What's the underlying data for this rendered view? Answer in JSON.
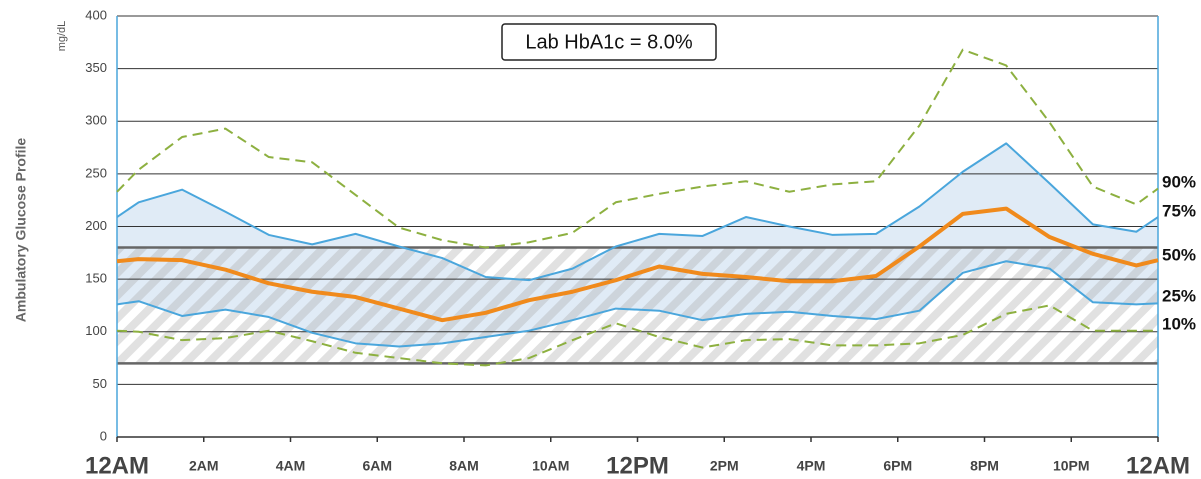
{
  "chart_data": {
    "type": "line",
    "y_axis_title": "Ambulatory Glucose Profile",
    "y_unit": "mg/dL",
    "annotation": "Lab HbA1c = 8.0%",
    "x": [
      0,
      0.5,
      1.5,
      2.5,
      3.5,
      4.5,
      5.5,
      6.5,
      7.5,
      8.5,
      9.5,
      10.5,
      11.5,
      12.5,
      13.5,
      14.5,
      15.5,
      16.5,
      17.5,
      18.5,
      19.5,
      20.5,
      21.5,
      22.5,
      23.5,
      24
    ],
    "xlim": [
      0,
      24
    ],
    "xticks": [
      {
        "value": 0,
        "label": "12AM"
      },
      {
        "value": 2,
        "label": "2AM"
      },
      {
        "value": 4,
        "label": "4AM"
      },
      {
        "value": 6,
        "label": "6AM"
      },
      {
        "value": 8,
        "label": "8AM"
      },
      {
        "value": 10,
        "label": "10AM"
      },
      {
        "value": 12,
        "label": "12PM"
      },
      {
        "value": 14,
        "label": "2PM"
      },
      {
        "value": 16,
        "label": "4PM"
      },
      {
        "value": 18,
        "label": "6PM"
      },
      {
        "value": 20,
        "label": "8PM"
      },
      {
        "value": 22,
        "label": "10PM"
      },
      {
        "value": 24,
        "label": "12AM"
      }
    ],
    "ylim": [
      0,
      400
    ],
    "yticks": [
      0,
      50,
      100,
      150,
      200,
      250,
      300,
      350,
      400
    ],
    "grid": true,
    "target_range": [
      70,
      180
    ],
    "iqr_fill": "#dbe7f4",
    "series": [
      {
        "name": "90%",
        "color": "#8db040",
        "dashed": true,
        "width": 2,
        "values": [
          233,
          254,
          285,
          293,
          266,
          261,
          230,
          199,
          187,
          180,
          185,
          194,
          223,
          231,
          238,
          243,
          233,
          240,
          243,
          296,
          368,
          353,
          299,
          238,
          221,
          236
        ]
      },
      {
        "name": "75%",
        "color": "#4aa6dc",
        "dashed": false,
        "width": 2,
        "values": [
          209,
          223,
          235,
          214,
          192,
          183,
          193,
          181,
          170,
          152,
          149,
          160,
          181,
          193,
          191,
          209,
          200,
          192,
          193,
          219,
          252,
          279,
          241,
          202,
          195,
          209
        ]
      },
      {
        "name": "50%",
        "color": "#f08a1c",
        "dashed": false,
        "width": 4,
        "values": [
          167,
          169,
          168,
          159,
          146,
          138,
          133,
          122,
          111,
          118,
          130,
          138,
          149,
          162,
          155,
          152,
          148,
          148,
          153,
          181,
          212,
          217,
          190,
          174,
          163,
          168
        ]
      },
      {
        "name": "25%",
        "color": "#4aa6dc",
        "dashed": false,
        "width": 2,
        "values": [
          126,
          129,
          115,
          121,
          114,
          99,
          89,
          86,
          89,
          95,
          101,
          111,
          122,
          120,
          111,
          117,
          119,
          115,
          112,
          120,
          156,
          167,
          160,
          128,
          126,
          127
        ]
      },
      {
        "name": "10%",
        "color": "#8db040",
        "dashed": true,
        "width": 2,
        "values": [
          101,
          100,
          92,
          94,
          101,
          91,
          80,
          75,
          70,
          68,
          75,
          92,
          108,
          95,
          85,
          92,
          93,
          87,
          87,
          89,
          97,
          117,
          125,
          101,
          101,
          101
        ]
      }
    ]
  }
}
